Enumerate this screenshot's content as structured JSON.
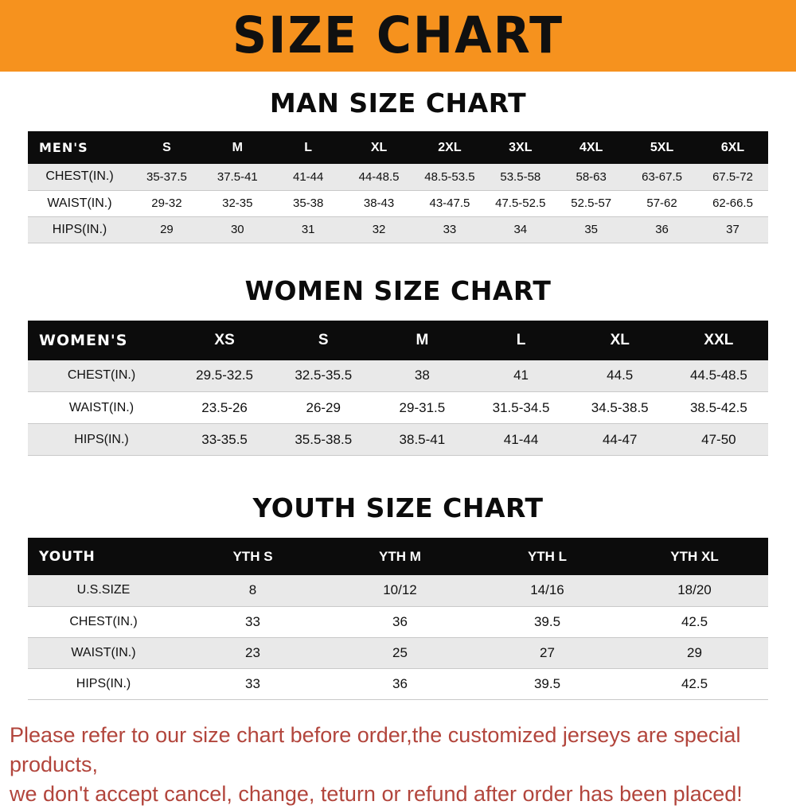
{
  "banner": {
    "title": "SIZE CHART"
  },
  "sections": [
    {
      "heading": "MAN SIZE CHART",
      "table": {
        "corner": "MEN'S",
        "columns": [
          "S",
          "M",
          "L",
          "XL",
          "2XL",
          "3XL",
          "4XL",
          "5XL",
          "6XL"
        ],
        "rows": [
          {
            "label": "CHEST(IN.)",
            "values": [
              "35-37.5",
              "37.5-41",
              "41-44",
              "44-48.5",
              "48.5-53.5",
              "53.5-58",
              "58-63",
              "63-67.5",
              "67.5-72"
            ]
          },
          {
            "label": "WAIST(IN.)",
            "values": [
              "29-32",
              "32-35",
              "35-38",
              "38-43",
              "43-47.5",
              "47.5-52.5",
              "52.5-57",
              "57-62",
              "62-66.5"
            ]
          },
          {
            "label": "HIPS(IN.)",
            "values": [
              "29",
              "30",
              "31",
              "32",
              "33",
              "34",
              "35",
              "36",
              "37"
            ]
          }
        ]
      }
    },
    {
      "heading": "WOMEN SIZE CHART",
      "table": {
        "corner": "WOMEN'S",
        "columns": [
          "XS",
          "S",
          "M",
          "L",
          "XL",
          "XXL"
        ],
        "rows": [
          {
            "label": "CHEST(IN.)",
            "values": [
              "29.5-32.5",
              "32.5-35.5",
              "38",
              "41",
              "44.5",
              "44.5-48.5"
            ]
          },
          {
            "label": "WAIST(IN.)",
            "values": [
              "23.5-26",
              "26-29",
              "29-31.5",
              "31.5-34.5",
              "34.5-38.5",
              "38.5-42.5"
            ]
          },
          {
            "label": "HIPS(IN.)",
            "values": [
              "33-35.5",
              "35.5-38.5",
              "38.5-41",
              "41-44",
              "44-47",
              "47-50"
            ]
          }
        ]
      }
    },
    {
      "heading": "YOUTH SIZE CHART",
      "table": {
        "corner": "YOUTH",
        "columns": [
          "YTH S",
          "YTH M",
          "YTH L",
          "YTH XL"
        ],
        "rows": [
          {
            "label": "U.S.SIZE",
            "values": [
              "8",
              "10/12",
              "14/16",
              "18/20"
            ]
          },
          {
            "label": "CHEST(IN.)",
            "values": [
              "33",
              "36",
              "39.5",
              "42.5"
            ]
          },
          {
            "label": "WAIST(IN.)",
            "values": [
              "23",
              "25",
              "27",
              "29"
            ]
          },
          {
            "label": "HIPS(IN.)",
            "values": [
              "33",
              "36",
              "39.5",
              "42.5"
            ]
          }
        ]
      }
    }
  ],
  "footer": {
    "line1": "Please refer to our size chart before order,the customized jerseys are special products,",
    "line2": "we don't accept cancel, change, teturn or refund after order has been placed!"
  },
  "colors": {
    "banner_bg": "#F6921E",
    "header_bg": "#0c0c0c",
    "row_alt_bg": "#e9e9e9",
    "footer_text": "#b2453c"
  }
}
